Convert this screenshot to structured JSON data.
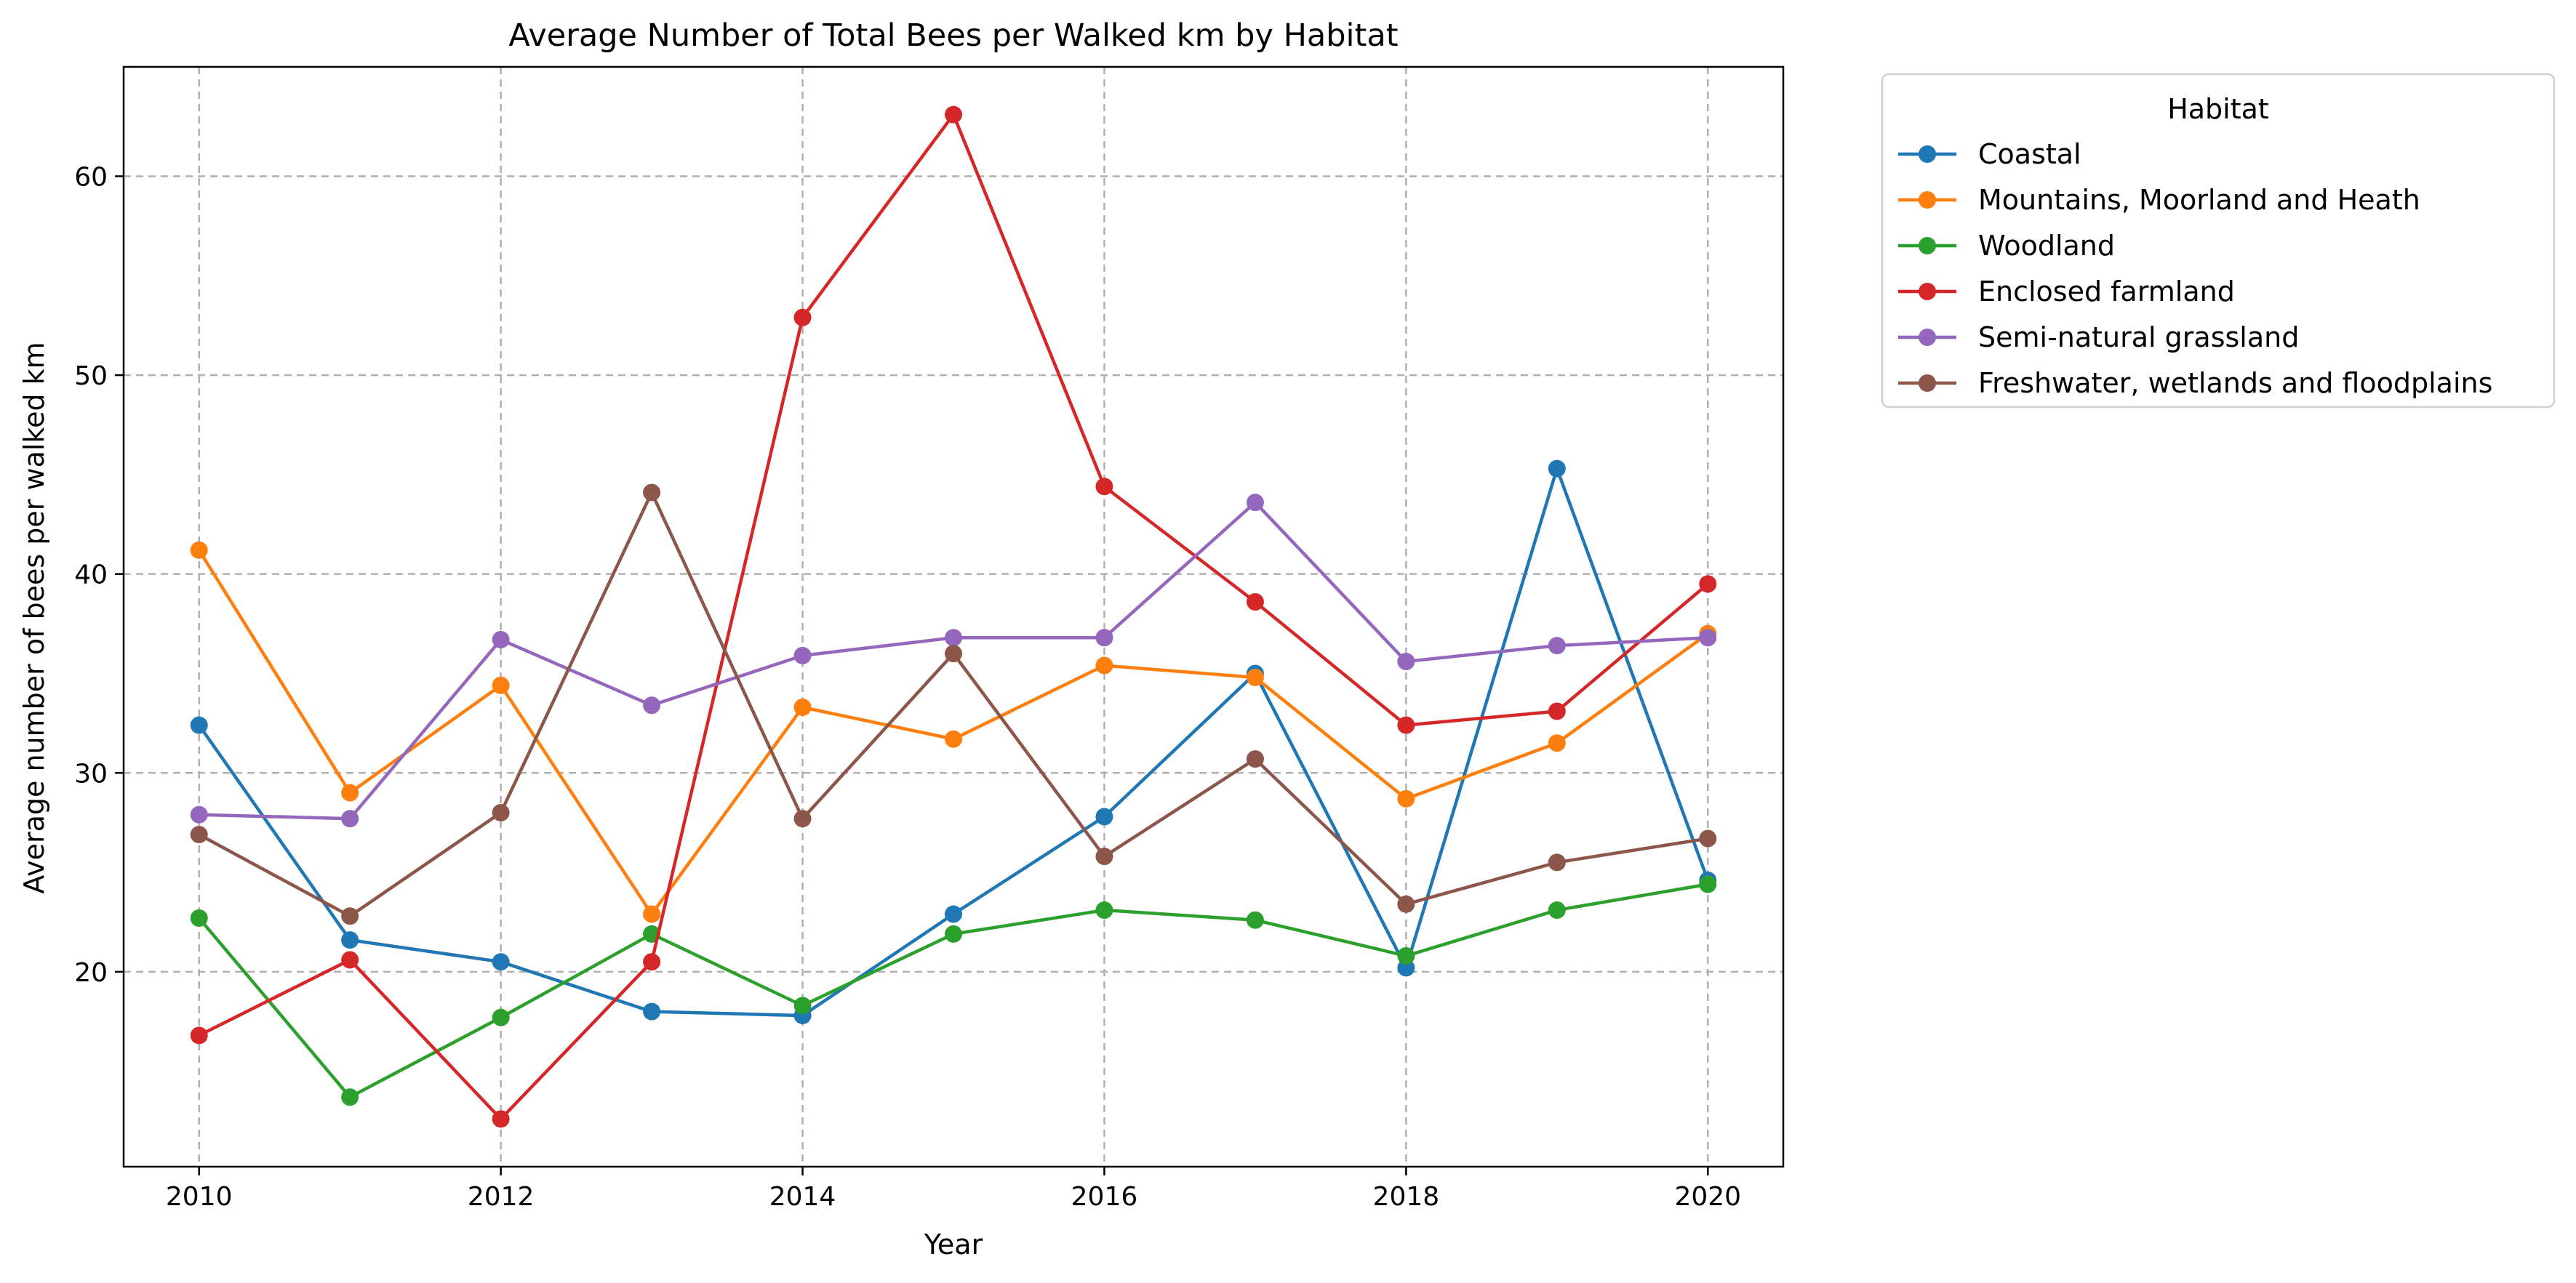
{
  "chart_data": {
    "type": "line",
    "title": "Average Number of Total Bees per Walked km by Habitat",
    "xlabel": "Year",
    "ylabel": "Average number of bees per walked km",
    "x": [
      2010,
      2011,
      2012,
      2013,
      2014,
      2015,
      2016,
      2017,
      2018,
      2019,
      2020
    ],
    "xlim": [
      2009.5,
      2020.5
    ],
    "ylim": [
      10.2,
      65.5
    ],
    "xticks": [
      2010,
      2012,
      2014,
      2016,
      2018,
      2020
    ],
    "yticks": [
      20,
      30,
      40,
      50,
      60
    ],
    "grid": true,
    "legend": {
      "title": "Habitat",
      "placement": "outside-top-right"
    },
    "series": [
      {
        "name": "Coastal",
        "color": "#1f77b4",
        "values": [
          32.4,
          21.6,
          20.5,
          18.0,
          17.8,
          22.9,
          27.8,
          35.0,
          20.2,
          45.3,
          24.6
        ]
      },
      {
        "name": "Mountains, Moorland and Heath",
        "color": "#ff7f0e",
        "values": [
          41.2,
          29.0,
          34.4,
          22.9,
          33.3,
          31.7,
          35.4,
          34.8,
          28.7,
          31.5,
          37.0
        ]
      },
      {
        "name": "Woodland",
        "color": "#2ca02c",
        "values": [
          22.7,
          13.7,
          17.7,
          21.9,
          18.3,
          21.9,
          23.1,
          22.6,
          20.8,
          23.1,
          24.4
        ]
      },
      {
        "name": "Enclosed farmland",
        "color": "#d62728",
        "values": [
          16.8,
          20.6,
          12.6,
          20.5,
          52.9,
          63.1,
          44.4,
          38.6,
          32.4,
          33.1,
          39.5
        ]
      },
      {
        "name": "Semi-natural grassland",
        "color": "#9467bd",
        "values": [
          27.9,
          27.7,
          36.7,
          33.4,
          35.9,
          36.8,
          36.8,
          43.6,
          35.6,
          36.4,
          36.8
        ]
      },
      {
        "name": "Freshwater, wetlands and floodplains",
        "color": "#8c564b",
        "values": [
          26.9,
          22.8,
          28.0,
          44.1,
          27.7,
          36.0,
          25.8,
          30.7,
          23.4,
          25.5,
          26.7
        ]
      }
    ]
  }
}
